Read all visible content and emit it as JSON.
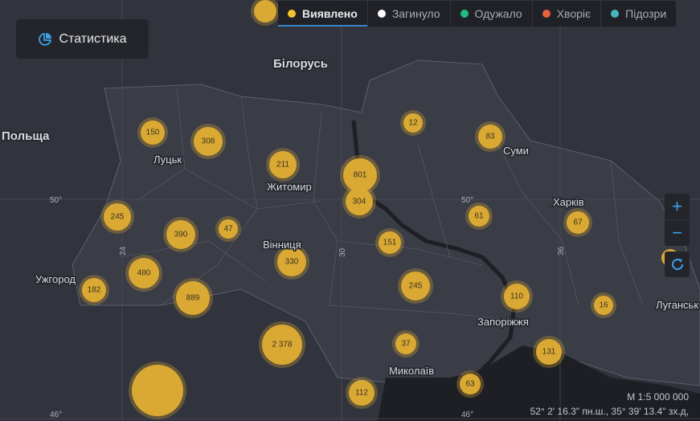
{
  "stats_button": {
    "label": "Статистика",
    "icon": "pie-chart-icon"
  },
  "tabs": [
    {
      "label": "Виявлено",
      "color": "#f2c232",
      "active": true
    },
    {
      "label": "Загинуло",
      "color": "#ffffff",
      "active": false
    },
    {
      "label": "Одужало",
      "color": "#1ebc84",
      "active": false
    },
    {
      "label": "Хворіє",
      "color": "#e8603c",
      "active": false
    },
    {
      "label": "Підозри",
      "color": "#45b6bb",
      "active": false
    }
  ],
  "map_controls": {
    "zoom_in": "+",
    "zoom_out": "−",
    "reset_icon": "refresh-icon"
  },
  "place_labels": [
    "Білорусь",
    "Польща",
    "Луцьк",
    "Житомир",
    "Вінниця",
    "Суми",
    "Харків",
    "Ужгород",
    "Запоріжжя",
    "Миколаїв",
    "Луганськ"
  ],
  "grid_labels": [
    "50°",
    "50°",
    "24",
    "30",
    "36",
    "46°",
    "46°"
  ],
  "clusters": [
    "150",
    "308",
    "211",
    "801",
    "304",
    "12",
    "83",
    "245",
    "390",
    "47",
    "151",
    "61",
    "67",
    "330",
    "480",
    "182",
    "889",
    "245",
    "110",
    "16",
    "2 378",
    "37",
    "131",
    "112",
    "63",
    "",
    ""
  ],
  "scale": "М 1:5 000 000",
  "coordinates": "52° 2' 16.3\" пн.ш., 35° 39' 13.4\" зх.д,",
  "colors": {
    "cluster": "#d9a933",
    "background": "#32343d",
    "sea": "#1e1f24",
    "accent": "#3ea1e6"
  }
}
